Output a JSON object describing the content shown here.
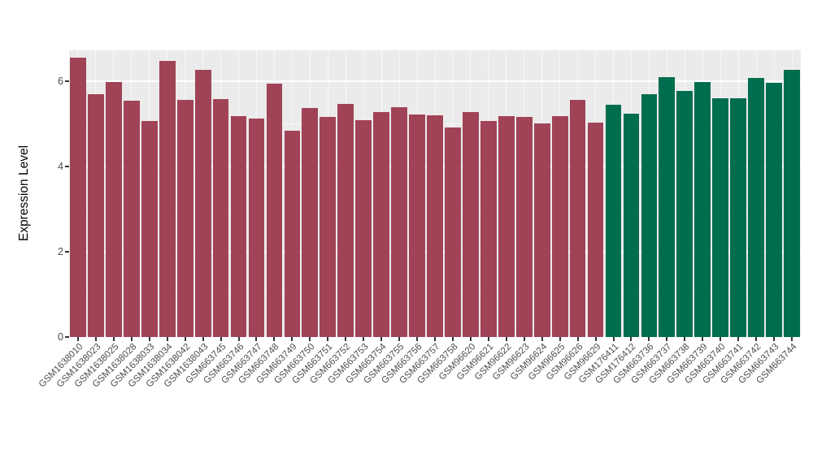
{
  "chart_data": {
    "type": "bar",
    "title": "",
    "xlabel": "",
    "ylabel": "Expression Level",
    "ylim": [
      0,
      6.73
    ],
    "yticks": [
      0,
      2,
      4,
      6
    ],
    "yticks_minor": [
      1,
      3,
      5
    ],
    "grid": "on",
    "legend": "none",
    "panel_background": "#EBEBEB",
    "group_colors": [
      "#A04357",
      "#016D4F"
    ],
    "categories": [
      "GSM1638010",
      "GSM1638023",
      "GSM1638025",
      "GSM1638028",
      "GSM1638033",
      "GSM1638034",
      "GSM1638042",
      "GSM1638043",
      "GSM663745",
      "GSM663746",
      "GSM663747",
      "GSM663748",
      "GSM663749",
      "GSM663750",
      "GSM663751",
      "GSM663752",
      "GSM663753",
      "GSM663754",
      "GSM663755",
      "GSM663756",
      "GSM663757",
      "GSM663758",
      "GSM96620",
      "GSM96621",
      "GSM96622",
      "GSM96623",
      "GSM96624",
      "GSM96625",
      "GSM96626",
      "GSM96629",
      "GSM176411",
      "GSM176412",
      "GSM663736",
      "GSM663737",
      "GSM663738",
      "GSM663739",
      "GSM663740",
      "GSM663741",
      "GSM663742",
      "GSM663743",
      "GSM663744"
    ],
    "values": [
      6.55,
      5.71,
      5.98,
      5.54,
      5.08,
      6.48,
      5.56,
      6.27,
      5.58,
      5.18,
      5.12,
      5.94,
      4.84,
      5.37,
      5.16,
      5.47,
      5.1,
      5.28,
      5.39,
      5.22,
      5.2,
      4.91,
      5.28,
      5.08,
      5.18,
      5.16,
      5.01,
      5.18,
      5.56,
      5.03,
      5.45,
      5.24,
      5.7,
      6.1,
      5.77,
      5.98,
      5.6,
      5.6,
      6.08,
      5.96,
      6.27
    ],
    "bar_groups": [
      0,
      0,
      0,
      0,
      0,
      0,
      0,
      0,
      0,
      0,
      0,
      0,
      0,
      0,
      0,
      0,
      0,
      0,
      0,
      0,
      0,
      0,
      0,
      0,
      0,
      0,
      0,
      0,
      0,
      0,
      1,
      1,
      1,
      1,
      1,
      1,
      1,
      1,
      1,
      1,
      1
    ]
  }
}
